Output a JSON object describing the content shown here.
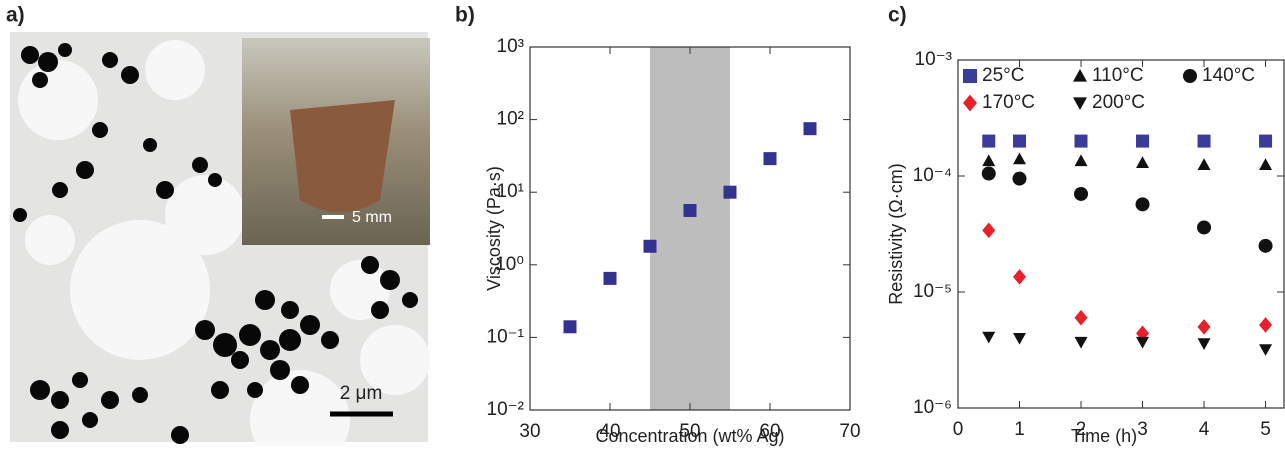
{
  "image_panel": {
    "panel_label": "a)",
    "scale_bar": "2 μm",
    "inset_scale_bar": "5 mm"
  },
  "chart_data": [
    {
      "type": "scatter",
      "panel_label": "b)",
      "xlabel": "Concentration (wt% Ag)",
      "ylabel": "Viscosity (Pa·s)",
      "x": [
        35,
        40,
        45,
        50,
        55,
        60,
        65
      ],
      "values": [
        0.14,
        0.65,
        1.8,
        5.6,
        10,
        29,
        75
      ],
      "color": "#33338f",
      "marker": "square",
      "shaded_region": [
        45,
        55
      ],
      "shade_color": "#bdbdbd",
      "xlim": [
        30,
        70
      ],
      "xticks": [
        30,
        40,
        50,
        60,
        70
      ],
      "ylog": true,
      "ylim": [
        0.01,
        1000
      ],
      "yticks": [
        {
          "value": 0.01,
          "label": "10⁻²"
        },
        {
          "value": 0.1,
          "label": "10⁻¹"
        },
        {
          "value": 1,
          "label": "10⁰"
        },
        {
          "value": 10,
          "label": "10¹"
        },
        {
          "value": 100,
          "label": "10²"
        },
        {
          "value": 1000,
          "label": "10³"
        }
      ]
    },
    {
      "type": "scatter",
      "panel_label": "c)",
      "xlabel": "Time (h)",
      "ylabel": "Resistivity (Ω·cm)",
      "x": [
        0.5,
        1,
        2,
        3,
        4,
        5
      ],
      "series": [
        {
          "name": "25°C",
          "color": "#3b3b99",
          "marker": "square",
          "values": [
            0.0002,
            0.0002,
            0.0002,
            0.0002,
            0.0002,
            0.0002
          ]
        },
        {
          "name": "110°C",
          "color": "#111111",
          "marker": "triangle-up",
          "values": [
            0.000135,
            0.00014,
            0.000135,
            0.00013,
            0.000125,
            0.000125
          ]
        },
        {
          "name": "140°C",
          "color": "#111111",
          "marker": "circle",
          "values": [
            0.000105,
            9.5e-05,
            7e-05,
            5.7e-05,
            3.6e-05,
            2.5e-05
          ]
        },
        {
          "name": "170°C",
          "color": "#e8202a",
          "marker": "diamond",
          "values": [
            3.4e-05,
            1.35e-05,
            6e-06,
            4.4e-06,
            5e-06,
            5.2e-06
          ]
        },
        {
          "name": "200°C",
          "color": "#111111",
          "marker": "triangle-down",
          "values": [
            4.1e-06,
            4e-06,
            3.7e-06,
            3.7e-06,
            3.6e-06,
            3.2e-06
          ]
        }
      ],
      "xlim": [
        0,
        5.3
      ],
      "xticks": [
        0,
        1,
        2,
        3,
        4,
        5
      ],
      "ylog": true,
      "ylim": [
        1e-06,
        0.001
      ],
      "yticks": [
        {
          "value": 1e-06,
          "label": "10⁻⁶"
        },
        {
          "value": 1e-05,
          "label": "10⁻⁵"
        },
        {
          "value": 0.0001,
          "label": "10⁻⁴"
        },
        {
          "value": 0.001,
          "label": "10⁻³"
        }
      ]
    }
  ]
}
